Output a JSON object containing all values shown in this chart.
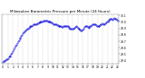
{
  "title": "Milwaukee Barometric Pressure per Minute (24 Hours)",
  "title_fontsize": 3.0,
  "background_color": "#ffffff",
  "plot_color": "#0000dd",
  "grid_color": "#bbbbbb",
  "x_ticks": [
    0,
    1,
    2,
    3,
    4,
    5,
    6,
    7,
    8,
    9,
    10,
    11,
    12,
    13,
    14,
    15,
    16,
    17,
    18,
    19,
    20,
    21,
    22,
    23
  ],
  "x_tick_labels": [
    "0",
    "1",
    "2",
    "3",
    "4",
    "5",
    "6",
    "7",
    "8",
    "9",
    "10",
    "11",
    "12",
    "13",
    "14",
    "15",
    "16",
    "17",
    "18",
    "19",
    "20",
    "21",
    "22",
    "23"
  ],
  "ylim": [
    29.35,
    30.12
  ],
  "xlim": [
    -0.3,
    23.3
  ],
  "y_ticks": [
    29.4,
    29.5,
    29.6,
    29.7,
    29.8,
    29.9,
    30.0,
    30.1
  ],
  "y_tick_labels": [
    "29.4",
    "29.5",
    "29.6",
    "29.7",
    "29.8",
    "29.9",
    "30.0",
    "30.1"
  ],
  "data_x": [
    0,
    0.17,
    0.33,
    0.5,
    0.67,
    0.83,
    1.0,
    1.17,
    1.33,
    1.5,
    1.67,
    1.83,
    2.0,
    2.17,
    2.33,
    2.5,
    2.67,
    2.83,
    3.0,
    3.17,
    3.33,
    3.5,
    3.67,
    3.83,
    4.0,
    4.17,
    4.33,
    4.5,
    4.67,
    4.83,
    5.0,
    5.17,
    5.33,
    5.5,
    5.67,
    5.83,
    6.0,
    6.17,
    6.33,
    6.5,
    6.67,
    6.83,
    7.0,
    7.17,
    7.33,
    7.5,
    7.67,
    7.83,
    8.0,
    8.17,
    8.33,
    8.5,
    8.67,
    8.83,
    9.0,
    9.17,
    9.33,
    9.5,
    9.67,
    9.83,
    10.0,
    10.17,
    10.33,
    10.5,
    10.67,
    10.83,
    11.0,
    11.17,
    11.33,
    11.5,
    11.67,
    11.83,
    12.0,
    12.17,
    12.33,
    12.5,
    12.67,
    12.83,
    13.0,
    13.17,
    13.33,
    13.5,
    13.67,
    13.83,
    14.0,
    14.17,
    14.33,
    14.5,
    14.67,
    14.83,
    15.0,
    15.17,
    15.33,
    15.5,
    15.67,
    15.83,
    16.0,
    16.17,
    16.33,
    16.5,
    16.67,
    16.83,
    17.0,
    17.17,
    17.33,
    17.5,
    17.67,
    17.83,
    18.0,
    18.17,
    18.33,
    18.5,
    18.67,
    18.83,
    19.0,
    19.17,
    19.33,
    19.5,
    19.67,
    19.83,
    20.0,
    20.17,
    20.33,
    20.5,
    20.67,
    20.83,
    21.0,
    21.17,
    21.33,
    21.5,
    21.67,
    21.83,
    22.0,
    22.17,
    22.33,
    22.5,
    22.67,
    22.83,
    23.0
  ],
  "data_y": [
    29.38,
    29.39,
    29.4,
    29.41,
    29.42,
    29.43,
    29.44,
    29.46,
    29.47,
    29.48,
    29.5,
    29.52,
    29.55,
    29.57,
    29.6,
    29.63,
    29.65,
    29.67,
    29.7,
    29.72,
    29.74,
    29.76,
    29.78,
    29.8,
    29.82,
    29.84,
    29.85,
    29.87,
    29.88,
    29.89,
    29.9,
    29.91,
    29.92,
    29.93,
    29.94,
    29.94,
    29.95,
    29.96,
    29.96,
    29.97,
    29.97,
    29.98,
    29.98,
    29.99,
    29.99,
    30.0,
    30.0,
    30.01,
    30.01,
    30.02,
    30.02,
    30.02,
    30.02,
    30.02,
    30.01,
    30.01,
    30.0,
    30.0,
    29.99,
    29.99,
    29.98,
    29.97,
    29.97,
    29.96,
    29.96,
    29.95,
    29.95,
    29.94,
    29.94,
    29.93,
    29.93,
    29.92,
    29.92,
    29.93,
    29.93,
    29.94,
    29.94,
    29.93,
    29.93,
    29.92,
    29.91,
    29.9,
    29.9,
    29.89,
    29.89,
    29.9,
    29.91,
    29.92,
    29.93,
    29.92,
    29.91,
    29.9,
    29.89,
    29.88,
    29.87,
    29.86,
    29.88,
    29.9,
    29.92,
    29.93,
    29.94,
    29.93,
    29.92,
    29.91,
    29.92,
    29.93,
    29.94,
    29.95,
    29.96,
    29.97,
    29.97,
    29.96,
    29.95,
    29.94,
    29.93,
    29.93,
    29.94,
    29.95,
    29.96,
    29.97,
    29.98,
    29.97,
    29.97,
    29.98,
    29.99,
    30.0,
    30.01,
    30.02,
    30.03,
    30.04,
    30.05,
    30.04,
    30.03,
    30.05,
    30.06,
    30.05,
    30.04,
    30.03,
    30.02
  ]
}
